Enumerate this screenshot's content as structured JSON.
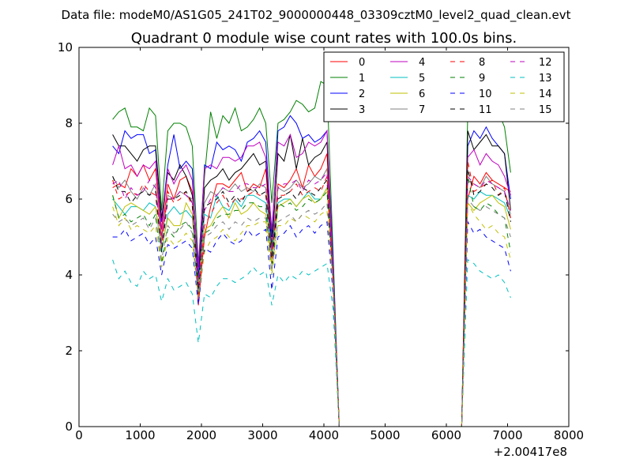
{
  "figure": {
    "suptitle": "Data file: modeM0/AS1G05_241T02_9000000448_03309cztM0_level2_quad_clean.evt",
    "title": "Quadrant 0 module wise count rates with 100.0s bins.",
    "offset_label": "+2.00417e8"
  },
  "chart_data": {
    "type": "line",
    "title": "Quadrant 0 module wise count rates with 100.0s bins.",
    "xlabel": "",
    "ylabel": "",
    "xlim": [
      0,
      8000
    ],
    "ylim": [
      0,
      10
    ],
    "x_offset": 200417000,
    "xticks": [
      0,
      1000,
      2000,
      3000,
      4000,
      5000,
      6000,
      7000,
      8000
    ],
    "yticks": [
      0,
      2,
      4,
      6,
      8,
      10
    ],
    "x_tick_labels": [
      "0",
      "1000",
      "2000",
      "3000",
      "4000",
      "5000",
      "6000",
      "7000",
      "8000"
    ],
    "y_tick_labels": [
      "0",
      "2",
      "4",
      "6",
      "8",
      "10"
    ],
    "grid": false,
    "legend_position": "top-right",
    "legend_columns": 4,
    "x": [
      550,
      650,
      750,
      850,
      950,
      1050,
      1150,
      1250,
      1350,
      1450,
      1550,
      1650,
      1750,
      1850,
      1950,
      2050,
      2150,
      2250,
      2350,
      2450,
      2550,
      2650,
      2750,
      2850,
      2950,
      3050,
      3150,
      3250,
      3350,
      3450,
      3550,
      3650,
      3750,
      3850,
      3950,
      4050,
      4150,
      4250,
      4350,
      4450,
      4550,
      4650,
      4750,
      4850,
      4950,
      5050,
      5150,
      5250,
      5350,
      5450,
      5550,
      5650,
      5750,
      5850,
      5950,
      6050,
      6150,
      6250,
      6350,
      6450,
      6550,
      6650,
      6750,
      6850,
      6950,
      7050
    ],
    "series": [
      {
        "name": "0",
        "color": "#ff0000",
        "dash": "solid",
        "values": [
          6.3,
          6.4,
          6.3,
          6.8,
          6.6,
          6.9,
          6.5,
          6.8,
          5.0,
          6.4,
          6.0,
          6.5,
          6.6,
          6.2,
          3.2,
          5.0,
          5.8,
          6.4,
          6.4,
          6.3,
          6.5,
          6.7,
          6.2,
          6.4,
          6.3,
          6.8,
          4.6,
          6.4,
          6.3,
          6.5,
          6.8,
          6.3,
          6.9,
          6.6,
          6.8,
          7.2,
          4.0,
          0.0,
          0.0,
          0.0,
          0.0,
          0.0,
          0.0,
          0.0,
          0.0,
          0.0,
          0.0,
          0.0,
          0.0,
          0.0,
          0.0,
          0.0,
          0.0,
          0.0,
          0.0,
          0.0,
          0.0,
          0.0,
          6.0,
          6.6,
          6.4,
          6.7,
          6.5,
          6.4,
          6.3,
          6.2
        ]
      },
      {
        "name": "1",
        "color": "#008000",
        "dash": "solid",
        "values": [
          8.1,
          8.3,
          8.4,
          7.9,
          7.9,
          7.8,
          8.4,
          8.2,
          5.7,
          7.8,
          8.0,
          8.0,
          7.9,
          7.4,
          4.3,
          6.6,
          8.3,
          7.6,
          8.2,
          8.0,
          8.4,
          7.8,
          7.9,
          8.1,
          8.4,
          8.0,
          5.9,
          8.0,
          8.1,
          8.3,
          8.6,
          8.5,
          8.3,
          8.4,
          9.1,
          9.0,
          4.6,
          0.0,
          0.0,
          0.0,
          0.0,
          0.0,
          0.0,
          0.0,
          0.0,
          0.0,
          0.0,
          0.0,
          0.0,
          0.0,
          0.0,
          0.0,
          0.0,
          0.0,
          0.0,
          0.0,
          0.0,
          0.0,
          8.3,
          8.4,
          8.5,
          8.8,
          8.6,
          8.3,
          7.9,
          6.7
        ]
      },
      {
        "name": "2",
        "color": "#0000ff",
        "dash": "solid",
        "values": [
          7.4,
          7.2,
          7.8,
          7.6,
          7.7,
          7.7,
          7.2,
          7.3,
          5.4,
          6.9,
          7.7,
          6.8,
          7.0,
          6.8,
          3.9,
          6.9,
          6.8,
          7.5,
          7.3,
          7.4,
          7.3,
          7.0,
          7.5,
          7.6,
          7.8,
          7.5,
          5.0,
          7.8,
          7.9,
          8.2,
          8.0,
          7.6,
          7.7,
          7.5,
          7.6,
          7.8,
          4.4,
          0.0,
          0.0,
          0.0,
          0.0,
          0.0,
          0.0,
          0.0,
          0.0,
          0.0,
          0.0,
          0.0,
          0.0,
          0.0,
          0.0,
          0.0,
          0.0,
          0.0,
          0.0,
          0.0,
          0.0,
          0.0,
          7.4,
          7.8,
          7.6,
          7.9,
          7.6,
          7.4,
          7.2,
          6.0
        ]
      },
      {
        "name": "3",
        "color": "#000000",
        "dash": "solid",
        "values": [
          7.7,
          7.4,
          7.4,
          7.2,
          7.0,
          7.3,
          7.4,
          7.4,
          5.5,
          6.7,
          6.5,
          6.9,
          6.6,
          6.1,
          3.7,
          6.3,
          6.5,
          6.6,
          6.8,
          6.5,
          6.7,
          6.8,
          7.0,
          7.2,
          6.9,
          7.0,
          4.7,
          7.2,
          7.0,
          7.7,
          6.8,
          7.6,
          6.9,
          7.1,
          7.2,
          7.5,
          4.2,
          0.0,
          0.0,
          0.0,
          0.0,
          0.0,
          0.0,
          0.0,
          0.0,
          0.0,
          0.0,
          0.0,
          0.0,
          0.0,
          0.0,
          0.0,
          0.0,
          0.0,
          0.0,
          0.0,
          0.0,
          0.0,
          7.8,
          7.3,
          7.5,
          7.7,
          7.4,
          7.4,
          7.2,
          5.7
        ]
      },
      {
        "name": "4",
        "color": "#bf00bf",
        "dash": "solid",
        "values": [
          6.9,
          7.4,
          6.8,
          6.9,
          6.6,
          6.9,
          6.8,
          7.0,
          5.2,
          6.8,
          6.4,
          6.7,
          6.9,
          6.5,
          4.2,
          6.8,
          6.9,
          6.8,
          7.1,
          7.1,
          7.0,
          7.1,
          7.4,
          7.4,
          7.5,
          7.1,
          5.2,
          7.5,
          7.4,
          7.7,
          7.1,
          7.2,
          7.5,
          7.4,
          7.5,
          7.8,
          4.1,
          0.0,
          0.0,
          0.0,
          0.0,
          0.0,
          0.0,
          0.0,
          0.0,
          0.0,
          0.0,
          0.0,
          0.0,
          0.0,
          0.0,
          0.0,
          0.0,
          0.0,
          0.0,
          0.0,
          0.0,
          0.0,
          7.1,
          7.3,
          6.9,
          7.2,
          7.0,
          6.9,
          6.6,
          6.1
        ]
      },
      {
        "name": "5",
        "color": "#00bfbf",
        "dash": "solid",
        "values": [
          6.0,
          5.8,
          5.6,
          5.8,
          5.8,
          5.7,
          5.9,
          5.8,
          4.6,
          5.6,
          5.8,
          5.6,
          5.7,
          5.5,
          3.7,
          5.6,
          5.5,
          6.1,
          5.8,
          5.7,
          6.0,
          5.8,
          6.1,
          6.1,
          6.0,
          5.9,
          4.5,
          5.9,
          6.0,
          6.0,
          5.8,
          6.0,
          6.2,
          6.0,
          6.0,
          6.3,
          3.9,
          0.0,
          0.0,
          0.0,
          0.0,
          0.0,
          0.0,
          0.0,
          0.0,
          0.0,
          0.0,
          0.0,
          0.0,
          0.0,
          0.0,
          0.0,
          0.0,
          0.0,
          0.0,
          0.0,
          0.0,
          0.0,
          6.1,
          6.0,
          6.2,
          6.1,
          6.1,
          6.0,
          5.9,
          5.5
        ]
      },
      {
        "name": "6",
        "color": "#bfbf00",
        "dash": "solid",
        "values": [
          6.1,
          5.5,
          5.8,
          5.9,
          5.8,
          5.7,
          5.6,
          5.8,
          4.7,
          5.5,
          5.3,
          5.3,
          5.9,
          5.6,
          3.8,
          5.2,
          5.3,
          5.6,
          5.8,
          5.5,
          5.9,
          5.6,
          5.7,
          5.9,
          5.7,
          5.6,
          4.3,
          5.8,
          5.9,
          6.0,
          5.8,
          6.0,
          6.1,
          5.9,
          6.0,
          6.3,
          3.9,
          0.0,
          0.0,
          0.0,
          0.0,
          0.0,
          0.0,
          0.0,
          0.0,
          0.0,
          0.0,
          0.0,
          0.0,
          0.0,
          0.0,
          0.0,
          0.0,
          0.0,
          0.0,
          0.0,
          0.0,
          0.0,
          5.9,
          5.7,
          5.9,
          6.0,
          6.1,
          5.9,
          5.8,
          5.2
        ]
      },
      {
        "name": "7",
        "color": "#808080",
        "dash": "solid",
        "values": [
          6.6,
          6.3,
          6.5,
          6.2,
          6.0,
          6.3,
          6.1,
          6.4,
          4.9,
          6.1,
          6.0,
          6.2,
          6.1,
          6.0,
          3.6,
          5.9,
          6.2,
          6.1,
          6.3,
          6.2,
          6.4,
          6.2,
          6.3,
          6.2,
          6.4,
          6.3,
          4.6,
          6.3,
          6.2,
          6.3,
          6.5,
          6.3,
          6.4,
          6.6,
          6.5,
          6.8,
          4.1,
          0.0,
          0.0,
          0.0,
          0.0,
          0.0,
          0.0,
          0.0,
          0.0,
          0.0,
          0.0,
          0.0,
          0.0,
          0.0,
          0.0,
          0.0,
          0.0,
          0.0,
          0.0,
          0.0,
          0.0,
          0.0,
          6.5,
          6.4,
          6.3,
          6.6,
          6.4,
          6.3,
          6.2,
          5.6
        ]
      },
      {
        "name": "8",
        "color": "#ff0000",
        "dash": "dashed",
        "values": [
          6.5,
          6.0,
          6.1,
          6.2,
          6.1,
          6.4,
          6.2,
          6.1,
          4.7,
          6.2,
          5.9,
          6.0,
          6.2,
          5.8,
          3.4,
          5.3,
          5.6,
          5.9,
          6.1,
          5.8,
          6.0,
          6.0,
          6.1,
          6.2,
          6.1,
          6.1,
          4.4,
          6.1,
          6.1,
          6.2,
          6.4,
          6.1,
          6.2,
          6.3,
          6.2,
          6.6,
          3.9,
          0.0,
          0.0,
          0.0,
          0.0,
          0.0,
          0.0,
          0.0,
          0.0,
          0.0,
          0.0,
          0.0,
          0.0,
          0.0,
          0.0,
          0.0,
          0.0,
          0.0,
          0.0,
          0.0,
          0.0,
          0.0,
          7.0,
          6.2,
          6.3,
          6.4,
          6.5,
          6.1,
          6.3,
          5.5
        ]
      },
      {
        "name": "9",
        "color": "#008000",
        "dash": "dashed",
        "values": [
          6.1,
          5.5,
          5.6,
          5.4,
          5.5,
          5.6,
          5.3,
          5.6,
          4.3,
          5.2,
          5.0,
          5.3,
          5.4,
          5.2,
          3.5,
          5.1,
          5.2,
          5.5,
          5.6,
          5.6,
          5.7,
          5.7,
          5.9,
          5.9,
          5.8,
          5.8,
          4.0,
          5.9,
          5.8,
          5.9,
          5.7,
          5.8,
          6.0,
          5.9,
          6.0,
          6.2,
          3.8,
          0.0,
          0.0,
          0.0,
          0.0,
          0.0,
          0.0,
          0.0,
          0.0,
          0.0,
          0.0,
          0.0,
          0.0,
          0.0,
          0.0,
          0.0,
          0.0,
          0.0,
          0.0,
          0.0,
          0.0,
          0.0,
          6.6,
          5.8,
          5.7,
          5.9,
          5.8,
          5.6,
          5.5,
          4.6
        ]
      },
      {
        "name": "10",
        "color": "#0000ff",
        "dash": "dashed",
        "values": [
          5.0,
          5.0,
          5.2,
          4.9,
          5.0,
          5.1,
          4.8,
          5.0,
          4.0,
          4.8,
          4.7,
          4.8,
          4.9,
          4.7,
          3.2,
          4.7,
          4.6,
          4.9,
          5.1,
          4.9,
          4.8,
          4.9,
          5.2,
          5.0,
          5.1,
          5.2,
          3.6,
          5.0,
          5.1,
          5.3,
          5.0,
          5.2,
          5.3,
          5.1,
          5.3,
          5.4,
          3.5,
          0.0,
          0.0,
          0.0,
          0.0,
          0.0,
          0.0,
          0.0,
          0.0,
          0.0,
          0.0,
          0.0,
          0.0,
          0.0,
          0.0,
          0.0,
          0.0,
          0.0,
          0.0,
          0.0,
          0.0,
          0.0,
          5.4,
          5.1,
          5.2,
          5.0,
          4.9,
          4.8,
          4.7,
          4.1
        ]
      },
      {
        "name": "11",
        "color": "#000000",
        "dash": "dashed",
        "values": [
          6.6,
          6.2,
          6.2,
          5.9,
          6.1,
          6.2,
          6.1,
          6.2,
          4.6,
          6.0,
          6.0,
          6.1,
          6.2,
          5.9,
          3.6,
          5.8,
          5.9,
          6.0,
          6.2,
          5.9,
          6.1,
          5.9,
          6.2,
          6.3,
          6.1,
          6.2,
          4.3,
          6.0,
          6.1,
          6.2,
          6.0,
          6.3,
          6.2,
          6.1,
          6.3,
          6.5,
          3.8,
          0.0,
          0.0,
          0.0,
          0.0,
          0.0,
          0.0,
          0.0,
          0.0,
          0.0,
          0.0,
          0.0,
          0.0,
          0.0,
          0.0,
          0.0,
          0.0,
          0.0,
          0.0,
          0.0,
          0.0,
          0.0,
          6.8,
          6.1,
          6.2,
          6.4,
          6.3,
          6.1,
          6.2,
          5.4
        ]
      },
      {
        "name": "12",
        "color": "#bf00bf",
        "dash": "dashed",
        "values": [
          6.4,
          6.5,
          6.0,
          6.3,
          6.1,
          6.2,
          6.5,
          6.3,
          4.8,
          6.1,
          6.0,
          6.2,
          6.1,
          5.9,
          3.7,
          5.7,
          6.0,
          6.1,
          6.3,
          6.2,
          6.2,
          6.4,
          6.4,
          6.3,
          6.3,
          6.4,
          4.5,
          6.3,
          6.4,
          6.4,
          6.5,
          6.2,
          6.5,
          6.4,
          6.5,
          6.7,
          4.0,
          0.0,
          0.0,
          0.0,
          0.0,
          0.0,
          0.0,
          0.0,
          0.0,
          0.0,
          0.0,
          0.0,
          0.0,
          0.0,
          0.0,
          0.0,
          0.0,
          0.0,
          0.0,
          0.0,
          0.0,
          0.0,
          6.6,
          6.4,
          6.3,
          6.5,
          6.4,
          6.3,
          6.2,
          5.7
        ]
      },
      {
        "name": "13",
        "color": "#00bfbf",
        "dash": "dashed",
        "values": [
          4.4,
          3.9,
          4.1,
          3.8,
          3.7,
          4.1,
          3.9,
          4.0,
          3.3,
          3.9,
          3.6,
          3.7,
          3.8,
          3.5,
          2.2,
          3.5,
          3.4,
          3.7,
          3.9,
          3.9,
          3.8,
          3.9,
          4.0,
          4.2,
          4.0,
          4.1,
          3.2,
          4.0,
          3.8,
          4.0,
          3.9,
          4.1,
          4.0,
          4.1,
          4.2,
          4.3,
          3.1,
          0.0,
          0.0,
          0.0,
          0.0,
          0.0,
          0.0,
          0.0,
          0.0,
          0.0,
          0.0,
          0.0,
          0.0,
          0.0,
          0.0,
          0.0,
          0.0,
          0.0,
          0.0,
          0.0,
          0.0,
          0.0,
          4.4,
          4.3,
          4.1,
          4.0,
          3.9,
          4.0,
          3.8,
          3.4
        ]
      },
      {
        "name": "14",
        "color": "#bfbf00",
        "dash": "dashed",
        "values": [
          5.8,
          5.3,
          5.5,
          5.2,
          5.3,
          5.2,
          5.1,
          5.3,
          4.2,
          5.0,
          4.8,
          4.9,
          5.1,
          4.9,
          3.4,
          4.6,
          4.9,
          5.0,
          5.2,
          5.0,
          4.9,
          5.1,
          5.3,
          5.3,
          5.4,
          5.4,
          4.0,
          5.3,
          5.3,
          5.5,
          5.4,
          5.6,
          5.5,
          5.4,
          5.6,
          5.7,
          3.7,
          0.0,
          0.0,
          0.0,
          0.0,
          0.0,
          0.0,
          0.0,
          0.0,
          0.0,
          0.0,
          0.0,
          0.0,
          0.0,
          0.0,
          0.0,
          0.0,
          0.0,
          0.0,
          0.0,
          0.0,
          0.0,
          5.9,
          5.6,
          5.4,
          5.2,
          5.3,
          5.1,
          5.0,
          4.4
        ]
      },
      {
        "name": "15",
        "color": "#808080",
        "dash": "dashed",
        "values": [
          5.6,
          5.4,
          5.5,
          5.3,
          5.4,
          5.5,
          5.2,
          5.5,
          4.4,
          5.3,
          5.1,
          5.2,
          5.4,
          5.1,
          3.4,
          5.0,
          5.1,
          5.3,
          5.4,
          5.2,
          5.4,
          5.3,
          5.5,
          5.4,
          5.5,
          5.5,
          4.1,
          5.4,
          5.5,
          5.6,
          5.4,
          5.6,
          5.7,
          5.6,
          5.7,
          5.9,
          3.8,
          0.0,
          0.0,
          0.0,
          0.0,
          0.0,
          0.0,
          0.0,
          0.0,
          0.0,
          0.0,
          0.0,
          0.0,
          0.0,
          0.0,
          0.0,
          0.0,
          0.0,
          0.0,
          0.0,
          0.0,
          0.0,
          6.0,
          5.8,
          5.7,
          5.8,
          5.7,
          5.6,
          5.5,
          5.0
        ]
      }
    ]
  }
}
